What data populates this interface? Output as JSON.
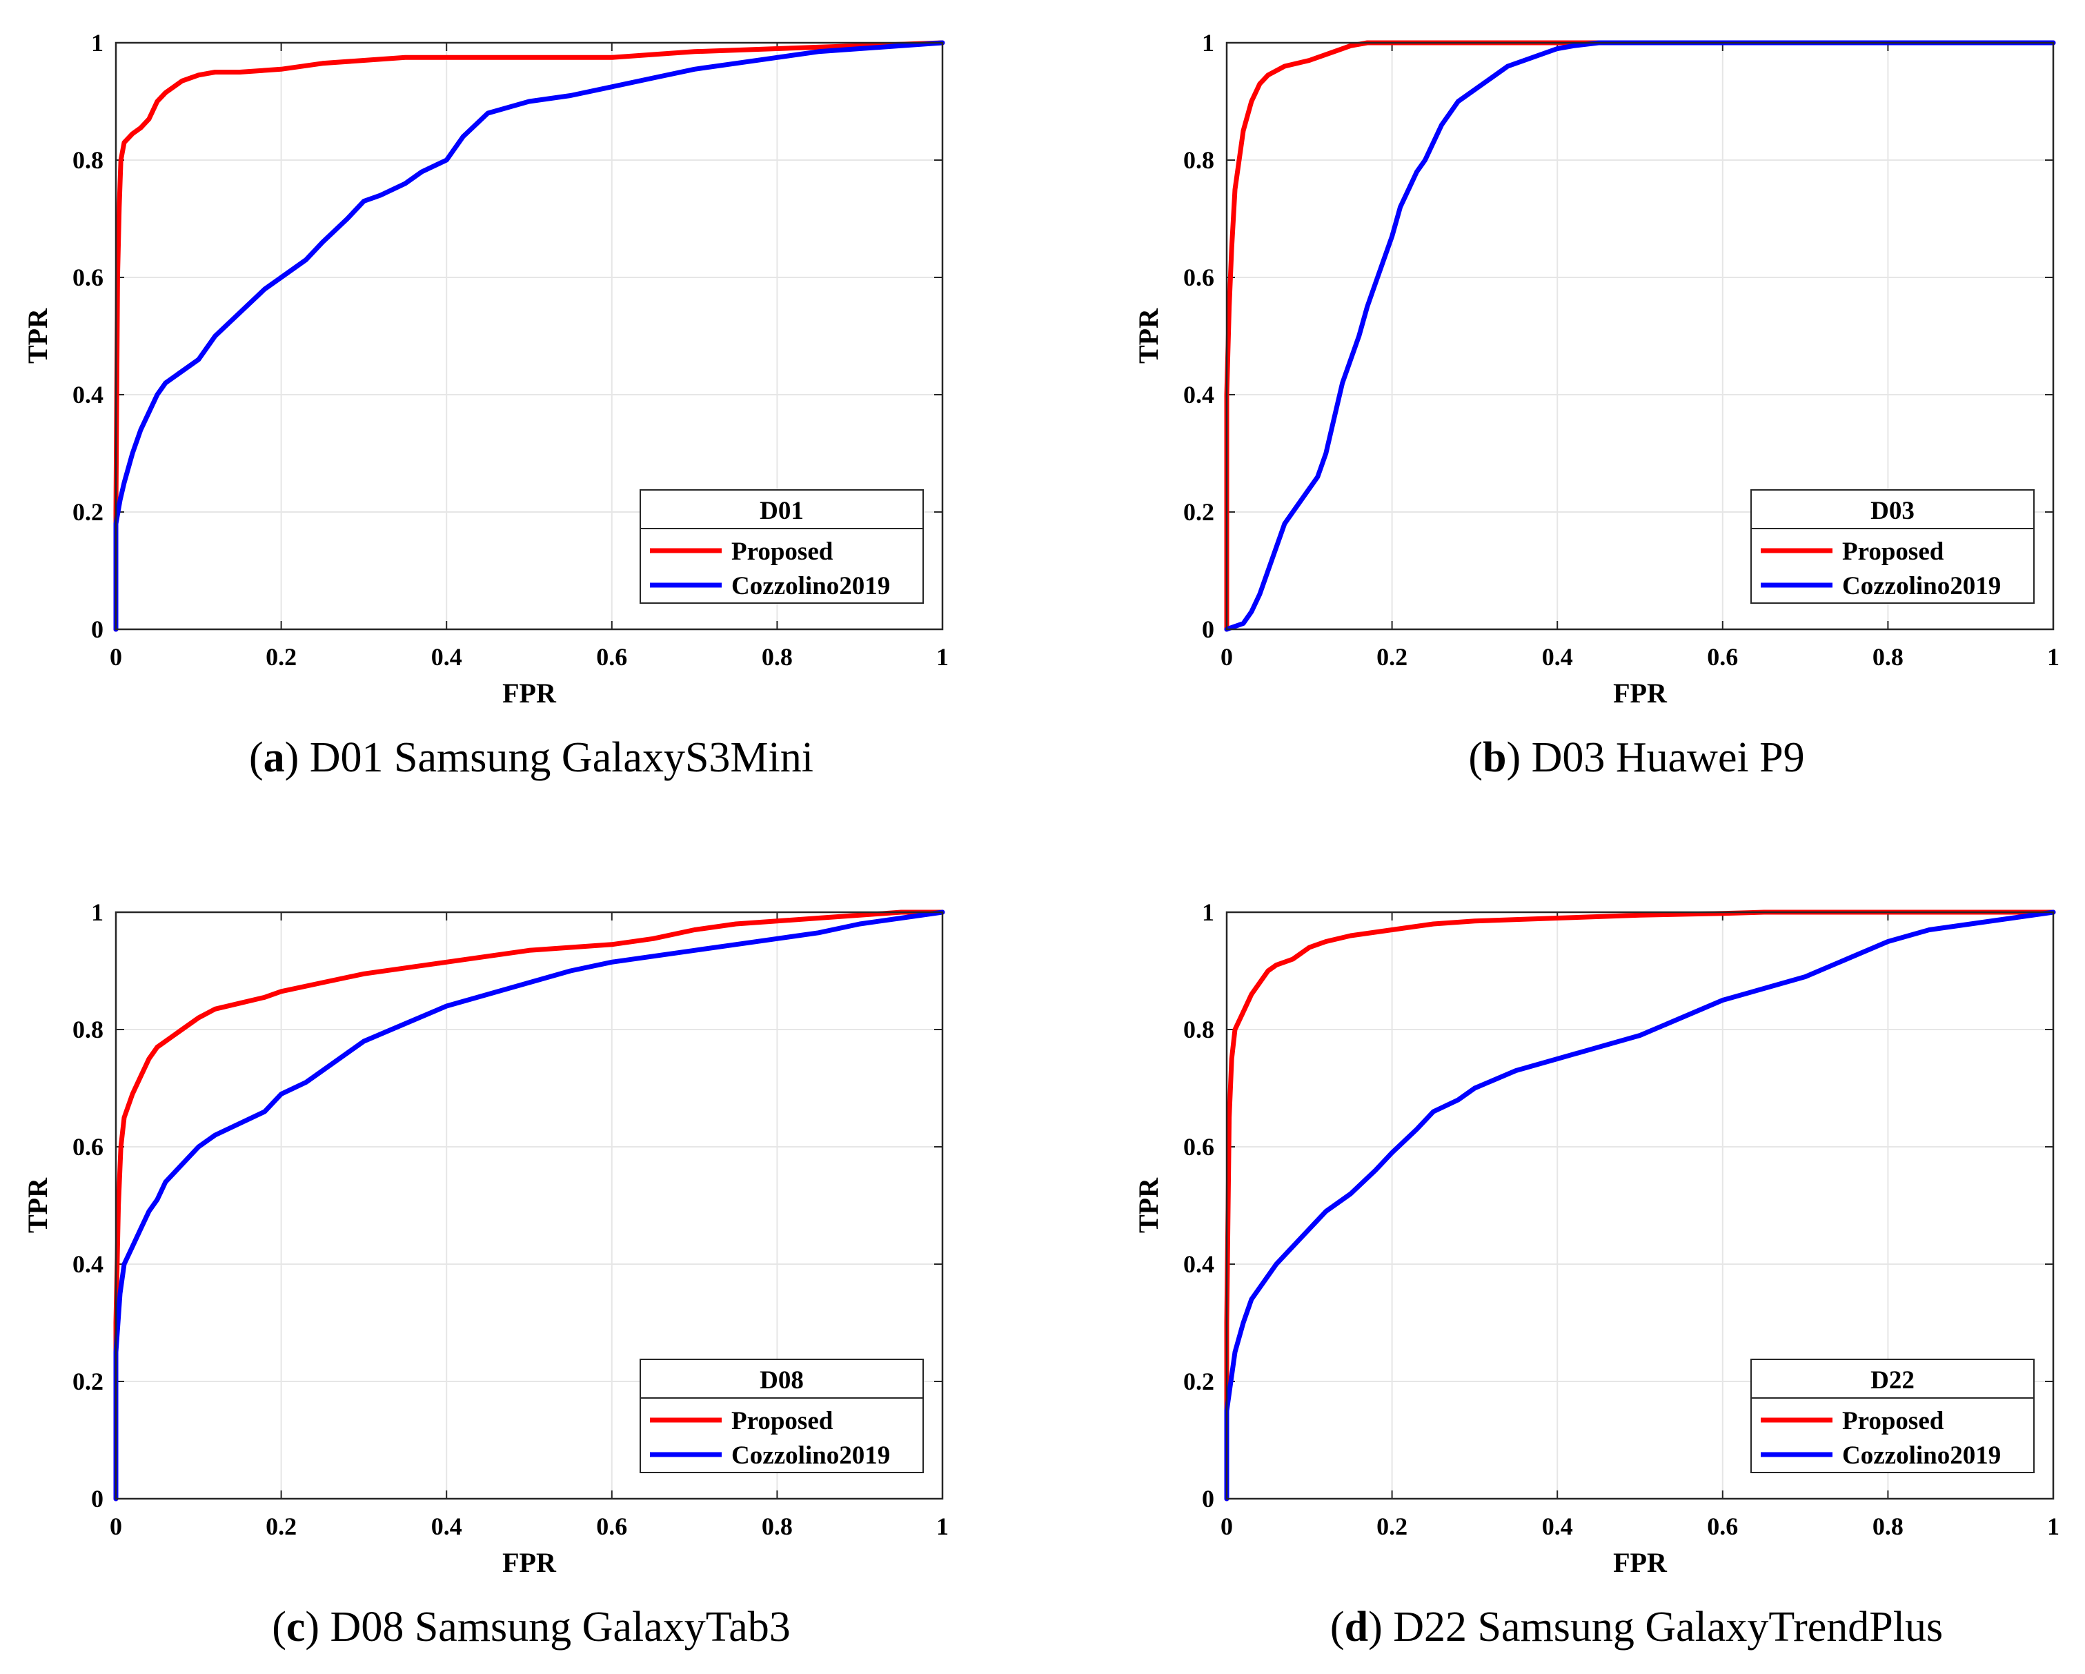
{
  "figure": {
    "panels": [
      {
        "label": "a",
        "caption": "D01 Samsung GalaxyS3Mini"
      },
      {
        "label": "b",
        "caption": "D03 Huawei P9"
      },
      {
        "label": "c",
        "caption": "D08 Samsung GalaxyTab3"
      },
      {
        "label": "d",
        "caption": "D22 Samsung GalaxyTrendPlus"
      }
    ]
  },
  "chart_data": [
    {
      "type": "line",
      "legend_title": "D01",
      "legend_location": "bottom-right",
      "xlabel": "FPR",
      "ylabel": "TPR",
      "xlim": [
        0,
        1
      ],
      "ylim": [
        0,
        1
      ],
      "xticks": [
        "0",
        "0.2",
        "0.4",
        "0.6",
        "0.8",
        "1"
      ],
      "yticks": [
        "0",
        "0.2",
        "0.4",
        "0.6",
        "0.8",
        "1"
      ],
      "grid": true,
      "series": [
        {
          "name": "Proposed",
          "color": "#ff0000",
          "x": [
            0,
            0,
            0.002,
            0.004,
            0.006,
            0.01,
            0.02,
            0.03,
            0.04,
            0.05,
            0.06,
            0.07,
            0.08,
            0.1,
            0.12,
            0.15,
            0.2,
            0.25,
            0.3,
            0.35,
            0.4,
            0.5,
            0.6,
            0.65,
            0.7,
            0.8,
            0.9,
            1
          ],
          "y": [
            0,
            0.2,
            0.6,
            0.72,
            0.8,
            0.83,
            0.845,
            0.855,
            0.87,
            0.9,
            0.915,
            0.925,
            0.935,
            0.945,
            0.95,
            0.95,
            0.955,
            0.965,
            0.97,
            0.975,
            0.975,
            0.975,
            0.975,
            0.98,
            0.985,
            0.99,
            0.995,
            1
          ]
        },
        {
          "name": "Cozzolino2019",
          "color": "#0000ff",
          "x": [
            0,
            0,
            0.005,
            0.01,
            0.02,
            0.03,
            0.04,
            0.05,
            0.06,
            0.08,
            0.1,
            0.12,
            0.15,
            0.18,
            0.2,
            0.23,
            0.25,
            0.28,
            0.3,
            0.32,
            0.35,
            0.37,
            0.4,
            0.42,
            0.45,
            0.5,
            0.55,
            0.6,
            0.65,
            0.7,
            0.75,
            0.8,
            0.85,
            0.9,
            0.95,
            1
          ],
          "y": [
            0,
            0.18,
            0.22,
            0.25,
            0.3,
            0.34,
            0.37,
            0.4,
            0.42,
            0.44,
            0.46,
            0.5,
            0.54,
            0.58,
            0.6,
            0.63,
            0.66,
            0.7,
            0.73,
            0.74,
            0.76,
            0.78,
            0.8,
            0.84,
            0.88,
            0.9,
            0.91,
            0.925,
            0.94,
            0.955,
            0.965,
            0.975,
            0.985,
            0.99,
            0.995,
            1
          ]
        }
      ]
    },
    {
      "type": "line",
      "legend_title": "D03",
      "legend_location": "bottom-right",
      "xlabel": "FPR",
      "ylabel": "TPR",
      "xlim": [
        0,
        1
      ],
      "ylim": [
        0,
        1
      ],
      "xticks": [
        "0",
        "0.2",
        "0.4",
        "0.6",
        "0.8",
        "1"
      ],
      "yticks": [
        "0",
        "0.2",
        "0.4",
        "0.6",
        "0.8",
        "1"
      ],
      "grid": true,
      "series": [
        {
          "name": "Proposed",
          "color": "#ff0000",
          "x": [
            0,
            0,
            0.003,
            0.006,
            0.01,
            0.015,
            0.02,
            0.03,
            0.04,
            0.05,
            0.07,
            0.1,
            0.13,
            0.15,
            0.17,
            0.3,
            1
          ],
          "y": [
            0,
            0.4,
            0.55,
            0.65,
            0.75,
            0.8,
            0.85,
            0.9,
            0.93,
            0.945,
            0.96,
            0.97,
            0.985,
            0.995,
            1,
            1,
            1
          ]
        },
        {
          "name": "Cozzolino2019",
          "color": "#0000ff",
          "x": [
            0,
            0.02,
            0.03,
            0.04,
            0.05,
            0.06,
            0.07,
            0.08,
            0.09,
            0.1,
            0.11,
            0.12,
            0.13,
            0.14,
            0.15,
            0.16,
            0.17,
            0.18,
            0.19,
            0.2,
            0.21,
            0.22,
            0.23,
            0.24,
            0.25,
            0.26,
            0.27,
            0.28,
            0.3,
            0.32,
            0.34,
            0.36,
            0.38,
            0.4,
            0.42,
            0.45,
            0.5,
            0.6,
            0.8,
            1
          ],
          "y": [
            0,
            0.01,
            0.03,
            0.06,
            0.1,
            0.14,
            0.18,
            0.2,
            0.22,
            0.24,
            0.26,
            0.3,
            0.36,
            0.42,
            0.46,
            0.5,
            0.55,
            0.59,
            0.63,
            0.67,
            0.72,
            0.75,
            0.78,
            0.8,
            0.83,
            0.86,
            0.88,
            0.9,
            0.92,
            0.94,
            0.96,
            0.97,
            0.98,
            0.99,
            0.995,
            1,
            1,
            1,
            1,
            1
          ]
        }
      ]
    },
    {
      "type": "line",
      "legend_title": "D08",
      "legend_location": "bottom-right",
      "xlabel": "FPR",
      "ylabel": "TPR",
      "xlim": [
        0,
        1
      ],
      "ylim": [
        0,
        1
      ],
      "xticks": [
        "0",
        "0.2",
        "0.4",
        "0.6",
        "0.8",
        "1"
      ],
      "yticks": [
        "0",
        "0.2",
        "0.4",
        "0.6",
        "0.8",
        "1"
      ],
      "grid": true,
      "series": [
        {
          "name": "Proposed",
          "color": "#ff0000",
          "x": [
            0,
            0,
            0.003,
            0.006,
            0.01,
            0.02,
            0.03,
            0.04,
            0.05,
            0.06,
            0.08,
            0.1,
            0.12,
            0.15,
            0.18,
            0.2,
            0.25,
            0.3,
            0.35,
            0.4,
            0.45,
            0.5,
            0.55,
            0.6,
            0.65,
            0.7,
            0.75,
            0.8,
            0.85,
            0.9,
            0.95,
            1
          ],
          "y": [
            0,
            0.3,
            0.5,
            0.6,
            0.65,
            0.69,
            0.72,
            0.75,
            0.77,
            0.78,
            0.8,
            0.82,
            0.835,
            0.845,
            0.855,
            0.865,
            0.88,
            0.895,
            0.905,
            0.915,
            0.925,
            0.935,
            0.94,
            0.945,
            0.955,
            0.97,
            0.98,
            0.985,
            0.99,
            0.995,
            1,
            1
          ]
        },
        {
          "name": "Cozzolino2019",
          "color": "#0000ff",
          "x": [
            0,
            0,
            0.005,
            0.01,
            0.02,
            0.03,
            0.04,
            0.05,
            0.06,
            0.08,
            0.1,
            0.12,
            0.15,
            0.18,
            0.2,
            0.23,
            0.25,
            0.28,
            0.3,
            0.35,
            0.4,
            0.45,
            0.5,
            0.55,
            0.6,
            0.65,
            0.7,
            0.75,
            0.8,
            0.85,
            0.9,
            0.95,
            1
          ],
          "y": [
            0,
            0.25,
            0.35,
            0.4,
            0.43,
            0.46,
            0.49,
            0.51,
            0.54,
            0.57,
            0.6,
            0.62,
            0.64,
            0.66,
            0.69,
            0.71,
            0.73,
            0.76,
            0.78,
            0.81,
            0.84,
            0.86,
            0.88,
            0.9,
            0.915,
            0.925,
            0.935,
            0.945,
            0.955,
            0.965,
            0.98,
            0.99,
            1
          ]
        }
      ]
    },
    {
      "type": "line",
      "legend_title": "D22",
      "legend_location": "bottom-right",
      "xlabel": "FPR",
      "ylabel": "TPR",
      "xlim": [
        0,
        1
      ],
      "ylim": [
        0,
        1
      ],
      "xticks": [
        "0",
        "0.2",
        "0.4",
        "0.6",
        "0.8",
        "1"
      ],
      "yticks": [
        "0",
        "0.2",
        "0.4",
        "0.6",
        "0.8",
        "1"
      ],
      "grid": true,
      "series": [
        {
          "name": "Proposed",
          "color": "#ff0000",
          "x": [
            0,
            0,
            0.003,
            0.006,
            0.01,
            0.02,
            0.03,
            0.04,
            0.05,
            0.06,
            0.08,
            0.1,
            0.12,
            0.15,
            0.2,
            0.25,
            0.3,
            0.4,
            0.5,
            0.6,
            0.65,
            0.7,
            0.8,
            0.9,
            1
          ],
          "y": [
            0,
            0.3,
            0.65,
            0.75,
            0.8,
            0.83,
            0.86,
            0.88,
            0.9,
            0.91,
            0.92,
            0.94,
            0.95,
            0.96,
            0.97,
            0.98,
            0.985,
            0.99,
            0.995,
            0.998,
            1,
            1,
            1,
            1,
            1
          ]
        },
        {
          "name": "Cozzolino2019",
          "color": "#0000ff",
          "x": [
            0,
            0,
            0.005,
            0.01,
            0.02,
            0.03,
            0.04,
            0.05,
            0.06,
            0.08,
            0.1,
            0.12,
            0.15,
            0.18,
            0.2,
            0.23,
            0.25,
            0.28,
            0.3,
            0.35,
            0.4,
            0.45,
            0.5,
            0.55,
            0.6,
            0.65,
            0.7,
            0.75,
            0.8,
            0.85,
            0.9,
            0.95,
            1
          ],
          "y": [
            0,
            0.15,
            0.2,
            0.25,
            0.3,
            0.34,
            0.36,
            0.38,
            0.4,
            0.43,
            0.46,
            0.49,
            0.52,
            0.56,
            0.59,
            0.63,
            0.66,
            0.68,
            0.7,
            0.73,
            0.75,
            0.77,
            0.79,
            0.82,
            0.85,
            0.87,
            0.89,
            0.92,
            0.95,
            0.97,
            0.98,
            0.99,
            1
          ]
        }
      ]
    }
  ]
}
